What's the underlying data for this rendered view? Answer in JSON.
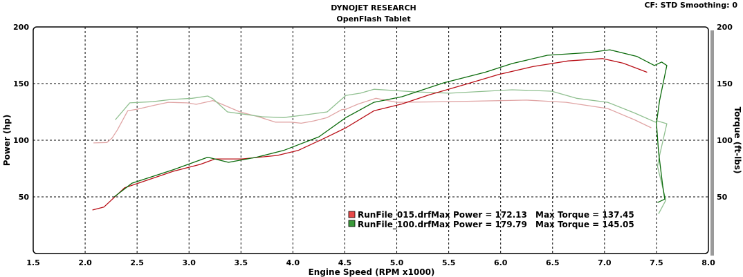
{
  "header": {
    "title": "DYNOJET RESEARCH",
    "subtitle": "OpenFlash Tablet",
    "settings": "CF: STD  Smoothing: 0"
  },
  "chart_data": {
    "type": "line",
    "title": "DYNOJET RESEARCH",
    "subtitle": "OpenFlash Tablet",
    "xlabel": "Engine Speed (RPM x1000)",
    "ylabel": "Power (hp)",
    "y2label": "Torque (ft-lbs)",
    "xlim": [
      1.5,
      8.0
    ],
    "ylim": [
      0,
      200
    ],
    "y2lim": [
      0,
      200
    ],
    "xticks": [
      "1.5",
      "2.0",
      "2.5",
      "3.0",
      "3.5",
      "4.0",
      "4.5",
      "5.0",
      "5.5",
      "6.0",
      "6.5",
      "7.0",
      "7.5",
      "8.0"
    ],
    "yticks": [
      "200",
      "150",
      "100",
      "50"
    ],
    "y2ticks": [
      "200",
      "150",
      "100",
      "50"
    ],
    "grid": true,
    "legend_placement": "bottom-center",
    "legend": [
      {
        "file": "RunFile_015.drf",
        "max_power_label": "Max Power = 172.13",
        "max_torque_label": "Max Torque = 137.45",
        "color": "#d01010"
      },
      {
        "file": "RunFile_100.drf",
        "max_power_label": "Max Power = 179.79",
        "max_torque_label": "Max Torque = 145.05",
        "color": "#0a7a0a"
      }
    ],
    "series": [
      {
        "name": "RunFile_015 Torque",
        "axis": "y2",
        "color": "#e0a4a4",
        "x": [
          2.08,
          2.21,
          2.26,
          2.31,
          2.41,
          2.5,
          2.67,
          2.8,
          2.98,
          3.07,
          3.23,
          3.31,
          3.49,
          3.67,
          3.83,
          3.98,
          4.08,
          4.2,
          4.33,
          4.47,
          4.51,
          4.63,
          4.8,
          5.0,
          5.51,
          6.25,
          6.63,
          7.03,
          7.29,
          7.45
        ],
        "y": [
          97.6,
          98,
          102,
          109,
          126,
          127.4,
          131,
          133.5,
          133,
          131.7,
          135,
          132,
          125,
          120.7,
          116,
          116,
          115,
          117,
          120,
          127,
          127.4,
          132,
          137,
          133.5,
          134,
          135.4,
          133.5,
          128,
          118,
          111
        ]
      },
      {
        "name": "RunFile_100 Torque",
        "axis": "y2",
        "color": "#8fbf8f",
        "x": [
          2.29,
          2.43,
          2.65,
          2.83,
          3.03,
          3.18,
          3.23,
          3.37,
          3.53,
          3.71,
          3.91,
          4.09,
          4.33,
          4.51,
          4.65,
          4.78,
          5.18,
          5.51,
          6.11,
          6.49,
          6.73,
          7.03,
          7.29,
          7.49,
          7.51,
          7.6,
          7.53,
          7.51,
          7.59,
          7.52
        ],
        "y": [
          118,
          133,
          134,
          136,
          137,
          139,
          136.6,
          125,
          123,
          120.7,
          120,
          122,
          125,
          139.6,
          141.5,
          145,
          142.7,
          141.5,
          144.5,
          143.3,
          137,
          133.5,
          124,
          116,
          117,
          114.6,
          86.6,
          77,
          47,
          35
        ]
      },
      {
        "name": "RunFile_015 Power",
        "axis": "y",
        "color": "#b80e16",
        "x": [
          2.07,
          2.18,
          2.38,
          2.51,
          2.85,
          3.11,
          3.25,
          3.51,
          3.85,
          4.05,
          4.31,
          4.51,
          4.78,
          5.05,
          5.31,
          5.65,
          5.98,
          6.31,
          6.65,
          6.98,
          7.18,
          7.41
        ],
        "y": [
          38.4,
          41,
          58,
          62,
          72.6,
          78.7,
          83.5,
          83.5,
          86.6,
          91,
          102,
          111,
          126,
          132,
          140,
          149,
          158,
          165,
          170,
          172.1,
          168,
          160
        ]
      },
      {
        "name": "RunFile_100 Power",
        "axis": "y",
        "color": "#0a6a0a",
        "x": [
          2.28,
          2.45,
          2.85,
          3.18,
          3.38,
          3.65,
          3.91,
          4.25,
          4.51,
          4.78,
          5.05,
          5.45,
          5.85,
          6.11,
          6.45,
          6.85,
          7.05,
          7.31,
          7.48,
          7.55,
          7.6,
          7.53,
          7.5,
          7.52,
          7.56,
          7.58,
          7.51
        ],
        "y": [
          50,
          62,
          74,
          85,
          80.5,
          85,
          91,
          103,
          120,
          133.5,
          138.4,
          150.6,
          160,
          167.7,
          175,
          177.4,
          179.8,
          174,
          166,
          169,
          166,
          135,
          115,
          90,
          60,
          48,
          45
        ]
      }
    ]
  }
}
